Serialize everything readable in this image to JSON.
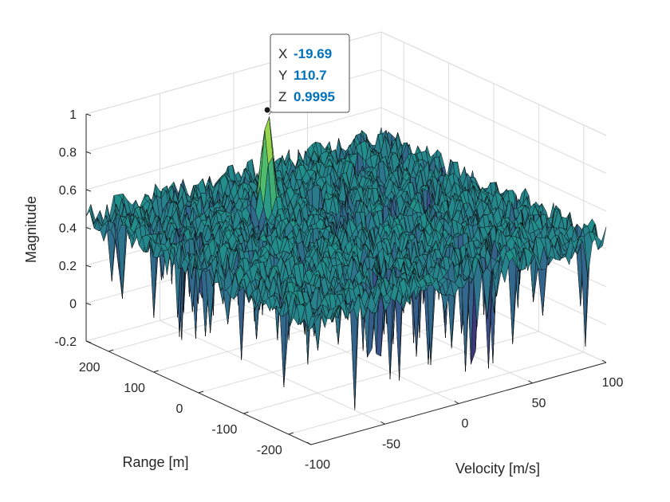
{
  "chart_data": {
    "type": "surface",
    "title": "",
    "xlabel": "Velocity [m/s]",
    "ylabel": "Range [m]",
    "zlabel": "Magnitude",
    "xlim": [
      -100,
      100
    ],
    "ylim": [
      -250,
      250
    ],
    "zlim": [
      -0.2,
      1
    ],
    "x_ticks": [
      "-100",
      "-50",
      "0",
      "50",
      "100"
    ],
    "y_ticks": [
      "-200",
      "-100",
      "0",
      "100",
      "200"
    ],
    "z_ticks": [
      "-0.2",
      "0",
      "0.2",
      "0.4",
      "0.6",
      "0.8",
      "1"
    ],
    "grid": true,
    "colormap": [
      "#440154",
      "#3b528b",
      "#21918c",
      "#5ec962",
      "#fde725"
    ],
    "noise_floor": 0.45,
    "peak": {
      "x": -19.69,
      "y": 110.7,
      "z": 0.9995
    },
    "datatip": {
      "x_key": "X",
      "x_value": "-19.69",
      "y_key": "Y",
      "y_value": "110.7",
      "z_key": "Z",
      "z_value": "0.9995"
    }
  }
}
